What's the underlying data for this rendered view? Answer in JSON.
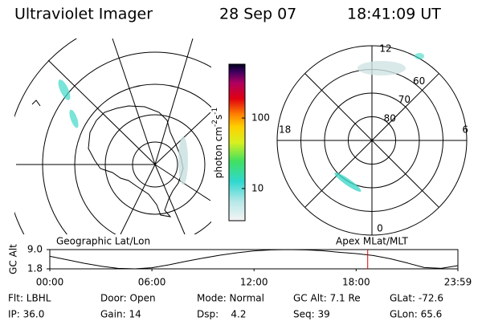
{
  "header": {
    "title": "Ultraviolet Imager",
    "date": "28 Sep 07",
    "time": "18:41:09 UT"
  },
  "colorbar": {
    "unit": [
      "photon cm",
      "-2",
      "s",
      "-1"
    ],
    "scale": "log",
    "lim": [
      3.5,
      580
    ],
    "ticks": [
      10,
      100
    ]
  },
  "geographic_view": {
    "label": "Geographic Lat/Lon"
  },
  "magnetic_view": {
    "label": "Apex MLat/MLT",
    "mlt_labels": [
      "12",
      "6",
      "0",
      "18"
    ],
    "lat_rings": [
      60,
      70,
      80
    ],
    "outer_lat": 50
  },
  "orbit_plot": {
    "type": "line",
    "ylabel": "GC Alt",
    "x": [
      0,
      1,
      2,
      3,
      4,
      5,
      6,
      7,
      8,
      9,
      10,
      11,
      12,
      13,
      14,
      15,
      16,
      17,
      18,
      19,
      20,
      21,
      22,
      23,
      23.98
    ],
    "values": [
      6.5,
      5.2,
      3.9,
      2.8,
      2.0,
      1.8,
      2.2,
      3.3,
      4.6,
      5.8,
      6.9,
      7.8,
      8.5,
      8.9,
      9.0,
      8.9,
      8.6,
      8.0,
      7.5,
      6.8,
      5.6,
      4.0,
      2.3,
      2.0,
      3.0
    ],
    "xlim": [
      0,
      23.98
    ],
    "xticks": [
      {
        "value": 0,
        "label": "00:00"
      },
      {
        "value": 6,
        "label": "06:00"
      },
      {
        "value": 12,
        "label": "12:00"
      },
      {
        "value": 18,
        "label": "18:00"
      },
      {
        "value": 23.98,
        "label": "23:59"
      }
    ],
    "ylim": [
      1.8,
      9
    ],
    "yticks": [
      {
        "value": 9,
        "label": "9.0"
      },
      1.8
    ],
    "current_time": 18.68,
    "color": "#000000",
    "marker_color": "#dd0000"
  },
  "footer": {
    "rows": [
      [
        "Flt: LBHL",
        "Door: Open",
        "Mode: Normal",
        "GC Alt: 7.1 Re",
        "GLat: -72.6"
      ],
      [
        "IP: 36.0",
        "Gain: 14",
        "Dsp:    4.2",
        "Seq: 39",
        "GLon: 65.6"
      ]
    ]
  }
}
